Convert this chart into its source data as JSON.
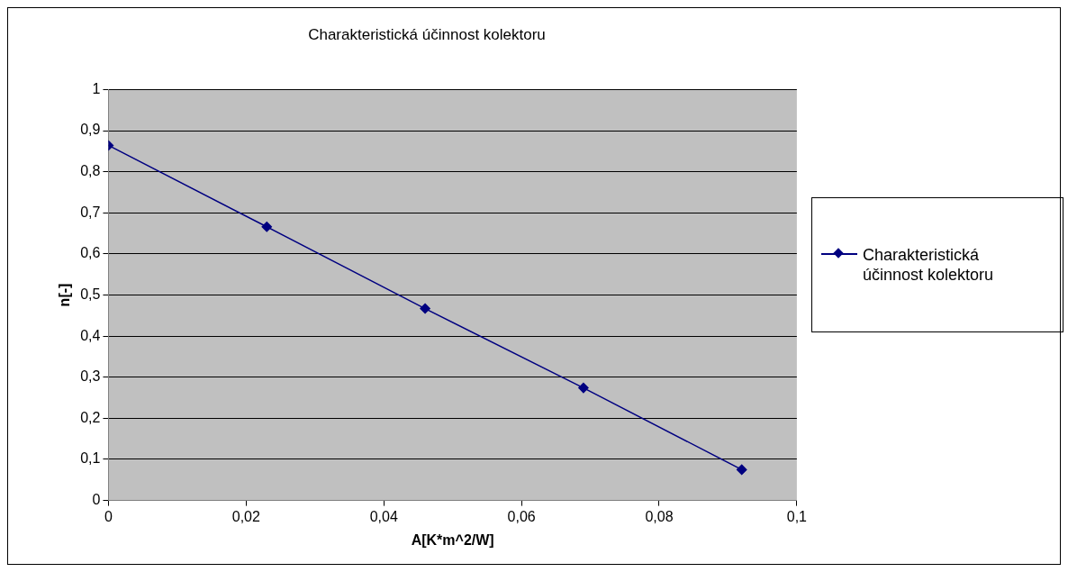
{
  "chart_data": {
    "type": "line",
    "title": "Charakteristická účinnost kolektoru",
    "xlabel": "A[K*m^2/W]",
    "ylabel": "n[-]",
    "x": [
      0,
      0.023,
      0.046,
      0.069,
      0.092
    ],
    "series": [
      {
        "name": "Charakteristická účinnost kolektoru",
        "color": "#000080",
        "values": [
          0.864,
          0.666,
          0.467,
          0.274,
          0.075
        ]
      }
    ],
    "xlim": [
      0,
      0.1
    ],
    "xticks": [
      0,
      {
        "value": 0.02,
        "label": "0,02"
      },
      {
        "value": 0.04,
        "label": "0,04"
      },
      {
        "value": 0.06,
        "label": "0,06"
      },
      {
        "value": 0.08,
        "label": "0,08"
      },
      {
        "value": 0.1,
        "label": "0,1"
      }
    ],
    "ylim": [
      0,
      1
    ],
    "yticks": [
      0,
      {
        "value": 0.1,
        "label": "0,1"
      },
      {
        "value": 0.2,
        "label": "0,2"
      },
      {
        "value": 0.3,
        "label": "0,3"
      },
      {
        "value": 0.4,
        "label": "0,4"
      },
      {
        "value": 0.5,
        "label": "0,5"
      },
      {
        "value": 0.6,
        "label": "0,6"
      },
      {
        "value": 0.7,
        "label": "0,7"
      },
      {
        "value": 0.8,
        "label": "0,8"
      },
      {
        "value": 0.9,
        "label": "0,9"
      },
      1
    ],
    "grid": "y",
    "legend": "right",
    "marker": "diamond",
    "line_style": "solid"
  }
}
